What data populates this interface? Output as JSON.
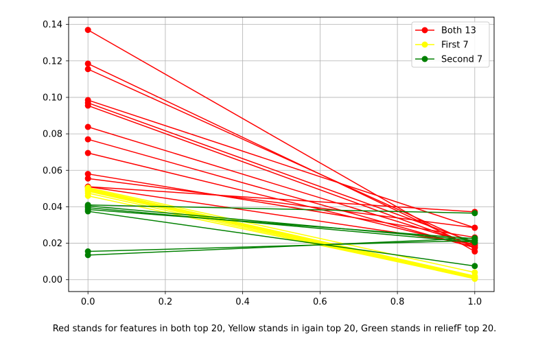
{
  "chart_data": {
    "type": "line",
    "title": "",
    "xlabel": "",
    "ylabel": "",
    "xlim": [
      -0.05,
      1.05
    ],
    "ylim": [
      -0.0065,
      0.144
    ],
    "xticks": [
      0.0,
      0.2,
      0.4,
      0.6,
      0.8,
      1.0
    ],
    "xtick_labels": [
      "0.0",
      "0.2",
      "0.4",
      "0.6",
      "0.8",
      "1.0"
    ],
    "yticks": [
      0.0,
      0.02,
      0.04,
      0.06,
      0.08,
      0.1,
      0.12,
      0.14
    ],
    "ytick_labels": [
      "0.00",
      "0.02",
      "0.04",
      "0.06",
      "0.08",
      "0.10",
      "0.12",
      "0.14"
    ],
    "grid": true,
    "legend_position": "top-right",
    "legend": [
      {
        "label": "Both 13",
        "color": "#ff0000"
      },
      {
        "label": "First 7",
        "color": "#ffff00"
      },
      {
        "label": "Second 7",
        "color": "#008000"
      }
    ],
    "x": [
      0,
      1
    ],
    "series": [
      {
        "group": "Both 13",
        "color": "#ff0000",
        "values": [
          0.137,
          0.0155
        ]
      },
      {
        "group": "Both 13",
        "color": "#ff0000",
        "values": [
          0.1185,
          0.0175
        ]
      },
      {
        "group": "Both 13",
        "color": "#ff0000",
        "values": [
          0.1155,
          0.0195
        ]
      },
      {
        "group": "Both 13",
        "color": "#ff0000",
        "values": [
          0.0985,
          0.0285
        ]
      },
      {
        "group": "Both 13",
        "color": "#ff0000",
        "values": [
          0.097,
          0.0205
        ]
      },
      {
        "group": "Both 13",
        "color": "#ff0000",
        "values": [
          0.0955,
          0.0185
        ]
      },
      {
        "group": "Both 13",
        "color": "#ff0000",
        "values": [
          0.0838,
          0.019
        ]
      },
      {
        "group": "Both 13",
        "color": "#ff0000",
        "values": [
          0.077,
          0.0175
        ]
      },
      {
        "group": "Both 13",
        "color": "#ff0000",
        "values": [
          0.0695,
          0.018
        ]
      },
      {
        "group": "Both 13",
        "color": "#ff0000",
        "values": [
          0.058,
          0.0232
        ]
      },
      {
        "group": "Both 13",
        "color": "#ff0000",
        "values": [
          0.0555,
          0.0285
        ]
      },
      {
        "group": "Both 13",
        "color": "#ff0000",
        "values": [
          0.051,
          0.0372
        ]
      },
      {
        "group": "Both 13",
        "color": "#ff0000",
        "values": [
          0.051,
          0.0195
        ]
      },
      {
        "group": "First 7",
        "color": "#ffff00",
        "values": [
          0.0505,
          0.004
        ]
      },
      {
        "group": "First 7",
        "color": "#ffff00",
        "values": [
          0.05,
          0.002
        ]
      },
      {
        "group": "First 7",
        "color": "#ffff00",
        "values": [
          0.0495,
          0.0015
        ]
      },
      {
        "group": "First 7",
        "color": "#ffff00",
        "values": [
          0.049,
          0.001
        ]
      },
      {
        "group": "First 7",
        "color": "#ffff00",
        "values": [
          0.0485,
          0.0007
        ]
      },
      {
        "group": "First 7",
        "color": "#ffff00",
        "values": [
          0.0475,
          0.0005
        ]
      },
      {
        "group": "First 7",
        "color": "#ffff00",
        "values": [
          0.046,
          0.0008
        ]
      },
      {
        "group": "Second 7",
        "color": "#008000",
        "values": [
          0.041,
          0.0365
        ]
      },
      {
        "group": "Second 7",
        "color": "#008000",
        "values": [
          0.0395,
          0.0205
        ]
      },
      {
        "group": "Second 7",
        "color": "#008000",
        "values": [
          0.0385,
          0.0225
        ]
      },
      {
        "group": "Second 7",
        "color": "#008000",
        "values": [
          0.0375,
          0.0075
        ]
      },
      {
        "group": "Second 7",
        "color": "#008000",
        "values": [
          0.0405,
          0.0215
        ]
      },
      {
        "group": "Second 7",
        "color": "#008000",
        "values": [
          0.0155,
          0.0215
        ]
      },
      {
        "group": "Second 7",
        "color": "#008000",
        "values": [
          0.0135,
          0.0228
        ]
      }
    ],
    "caption": "Red stands for features in both top 20, Yellow stands in igain top 20, Green stands in reliefF top 20."
  }
}
